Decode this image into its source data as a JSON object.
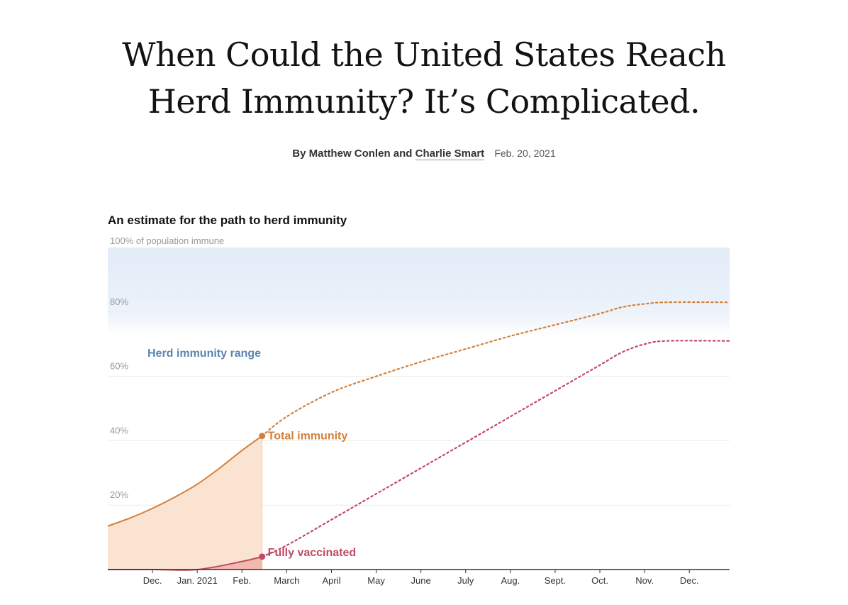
{
  "article": {
    "headline_line1": "When Could the United States Reach",
    "headline_line2": "Herd Immunity? It’s Complicated.",
    "byline_prefix": "By",
    "author1": "Matthew Conlen",
    "byline_and": "and",
    "author2": "Charlie Smart",
    "date": "Feb. 20, 2021"
  },
  "colors": {
    "total": "#d4803a",
    "total_fill": "#fbe3d1",
    "vaccinated": "#c04a65",
    "vaccinated_fill": "#f2b9ae",
    "herd_band": "#e3ecf7",
    "herd_label": "#5b86b0",
    "grid": "#ebebeb",
    "axis": "#333333"
  },
  "chart_data": {
    "type": "line",
    "title": "An estimate for the path to herd immunity",
    "ylabel": "100% of population immune",
    "ylim": [
      0,
      100
    ],
    "yticks": [
      {
        "value": 80,
        "label": "80%"
      },
      {
        "value": 60,
        "label": "60%"
      },
      {
        "value": 40,
        "label": "40%"
      },
      {
        "value": 20,
        "label": "20%"
      }
    ],
    "xlim": [
      0,
      13.9
    ],
    "xticks": [
      {
        "x": 1,
        "label": "Dec."
      },
      {
        "x": 2,
        "label": "Jan. 2021"
      },
      {
        "x": 3,
        "label": "Feb."
      },
      {
        "x": 4,
        "label": "March"
      },
      {
        "x": 5,
        "label": "April"
      },
      {
        "x": 6,
        "label": "May"
      },
      {
        "x": 7,
        "label": "June"
      },
      {
        "x": 8,
        "label": "July"
      },
      {
        "x": 9,
        "label": "Aug."
      },
      {
        "x": 10,
        "label": "Sept."
      },
      {
        "x": 11,
        "label": "Oct."
      },
      {
        "x": 12,
        "label": "Nov."
      },
      {
        "x": 13,
        "label": "Dec."
      }
    ],
    "herd_immunity_range": {
      "label": "Herd immunity range",
      "low": 70,
      "high": 100
    },
    "current_x": 3.45,
    "series": [
      {
        "name": "Total immunity",
        "actual": [
          [
            0,
            13.5
          ],
          [
            0.5,
            16
          ],
          [
            1,
            19
          ],
          [
            1.5,
            22.5
          ],
          [
            2,
            26.5
          ],
          [
            2.5,
            31.5
          ],
          [
            3,
            37
          ],
          [
            3.45,
            41.5
          ]
        ],
        "projected": [
          [
            3.45,
            41.5
          ],
          [
            4,
            47.5
          ],
          [
            5,
            55
          ],
          [
            6,
            60
          ],
          [
            7,
            64.5
          ],
          [
            8,
            68.5
          ],
          [
            9,
            72.5
          ],
          [
            10,
            76
          ],
          [
            11,
            79.5
          ],
          [
            11.5,
            81.5
          ],
          [
            12,
            82.5
          ],
          [
            12.5,
            83
          ],
          [
            13.9,
            83
          ]
        ]
      },
      {
        "name": "Fully vaccinated",
        "actual": [
          [
            0,
            0
          ],
          [
            1,
            0
          ],
          [
            2,
            0
          ],
          [
            3,
            2.5
          ],
          [
            3.45,
            4
          ]
        ],
        "projected": [
          [
            3.45,
            4
          ],
          [
            4,
            7.5
          ],
          [
            5,
            15.5
          ],
          [
            6,
            23.5
          ],
          [
            7,
            31.5
          ],
          [
            8,
            39.5
          ],
          [
            9,
            47.5
          ],
          [
            10,
            55.5
          ],
          [
            11,
            63.5
          ],
          [
            11.5,
            67.5
          ],
          [
            12,
            70
          ],
          [
            12.5,
            71
          ],
          [
            13.9,
            71
          ]
        ]
      }
    ]
  }
}
